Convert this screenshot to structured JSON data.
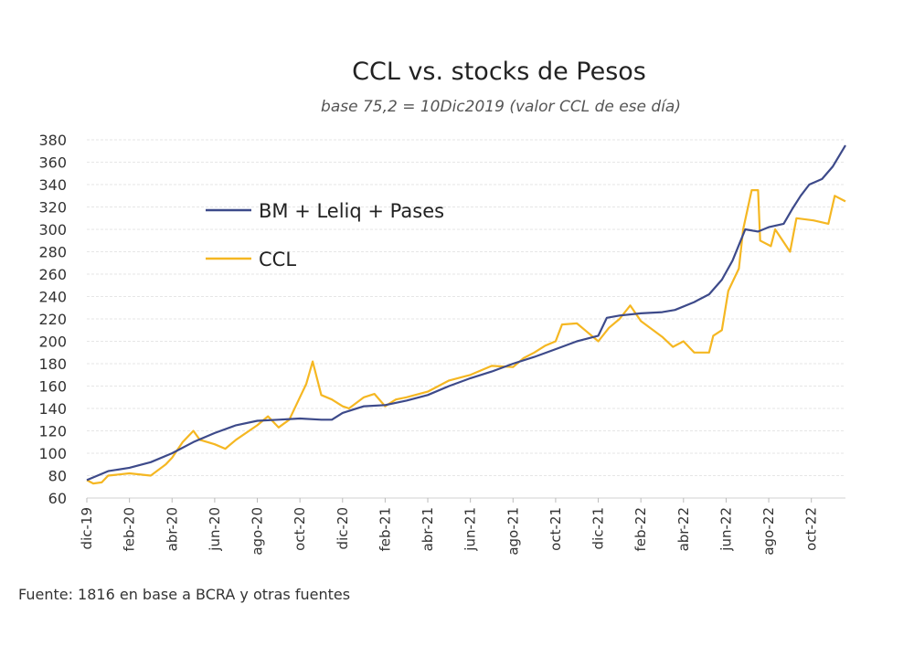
{
  "chart_data": {
    "type": "line",
    "title": "CCL vs. stocks de Pesos",
    "subtitle": "base 75,2 = 10Dic2019 (valor CCL de ese día)",
    "xlabel": "",
    "ylabel": "",
    "x_unit": "months since dic-19",
    "xlim": [
      0,
      35.6
    ],
    "ylim": [
      60,
      380
    ],
    "yticks": [
      60,
      80,
      100,
      120,
      140,
      160,
      180,
      200,
      220,
      240,
      260,
      280,
      300,
      320,
      340,
      360,
      380
    ],
    "xticks": [
      {
        "x": 0,
        "label": "dic-19"
      },
      {
        "x": 2,
        "label": "feb-20"
      },
      {
        "x": 4,
        "label": "abr-20"
      },
      {
        "x": 6,
        "label": "jun-20"
      },
      {
        "x": 8,
        "label": "ago-20"
      },
      {
        "x": 10,
        "label": "oct-20"
      },
      {
        "x": 12,
        "label": "dic-20"
      },
      {
        "x": 14,
        "label": "feb-21"
      },
      {
        "x": 16,
        "label": "abr-21"
      },
      {
        "x": 18,
        "label": "jun-21"
      },
      {
        "x": 20,
        "label": "ago-21"
      },
      {
        "x": 22,
        "label": "oct-21"
      },
      {
        "x": 24,
        "label": "dic-21"
      },
      {
        "x": 26,
        "label": "feb-22"
      },
      {
        "x": 28,
        "label": "abr-22"
      },
      {
        "x": 30,
        "label": "jun-22"
      },
      {
        "x": 32,
        "label": "ago-22"
      },
      {
        "x": 34,
        "label": "oct-22"
      }
    ],
    "grid": true,
    "legend_position": "top-left",
    "series": [
      {
        "name": "BM + Leliq + Pases",
        "color": "#3d4a8a",
        "points": [
          [
            0,
            76
          ],
          [
            0.5,
            80
          ],
          [
            1,
            84
          ],
          [
            2,
            87
          ],
          [
            3,
            92
          ],
          [
            4,
            100
          ],
          [
            5,
            110
          ],
          [
            6,
            118
          ],
          [
            7,
            125
          ],
          [
            8,
            129
          ],
          [
            9,
            130
          ],
          [
            10,
            131
          ],
          [
            11,
            130
          ],
          [
            11.5,
            130
          ],
          [
            12,
            136
          ],
          [
            13,
            142
          ],
          [
            14,
            143
          ],
          [
            15,
            147
          ],
          [
            16,
            152
          ],
          [
            17,
            160
          ],
          [
            18,
            167
          ],
          [
            19,
            173
          ],
          [
            20,
            180
          ],
          [
            21,
            186
          ],
          [
            22,
            193
          ],
          [
            23,
            200
          ],
          [
            24,
            205
          ],
          [
            24.4,
            221
          ],
          [
            25,
            223
          ],
          [
            26,
            225
          ],
          [
            27,
            226
          ],
          [
            27.6,
            228
          ],
          [
            28.5,
            235
          ],
          [
            29.2,
            242
          ],
          [
            29.8,
            255
          ],
          [
            30.3,
            272
          ],
          [
            30.9,
            300
          ],
          [
            31.5,
            298
          ],
          [
            32,
            302
          ],
          [
            32.7,
            305
          ],
          [
            33.1,
            318
          ],
          [
            33.5,
            330
          ],
          [
            33.9,
            340
          ],
          [
            34.5,
            345
          ],
          [
            35,
            356
          ],
          [
            35.6,
            375
          ]
        ]
      },
      {
        "name": "CCL",
        "color": "#f5b722",
        "points": [
          [
            0,
            76
          ],
          [
            0.3,
            73
          ],
          [
            0.7,
            74
          ],
          [
            1,
            80
          ],
          [
            2,
            82
          ],
          [
            3,
            80
          ],
          [
            3.7,
            90
          ],
          [
            4,
            96
          ],
          [
            4.5,
            110
          ],
          [
            5,
            120
          ],
          [
            5.3,
            112
          ],
          [
            6,
            108
          ],
          [
            6.5,
            104
          ],
          [
            7,
            112
          ],
          [
            8,
            125
          ],
          [
            8.5,
            133
          ],
          [
            9,
            123
          ],
          [
            9.5,
            130
          ],
          [
            10,
            150
          ],
          [
            10.3,
            162
          ],
          [
            10.6,
            182
          ],
          [
            11,
            152
          ],
          [
            11.5,
            148
          ],
          [
            12,
            142
          ],
          [
            12.3,
            140
          ],
          [
            13,
            150
          ],
          [
            13.5,
            153
          ],
          [
            14,
            142
          ],
          [
            14.5,
            148
          ],
          [
            15,
            150
          ],
          [
            16,
            155
          ],
          [
            17,
            165
          ],
          [
            18,
            170
          ],
          [
            19,
            178
          ],
          [
            20,
            177
          ],
          [
            20.5,
            185
          ],
          [
            21,
            190
          ],
          [
            21.5,
            196
          ],
          [
            22,
            200
          ],
          [
            22.3,
            215
          ],
          [
            23,
            216
          ],
          [
            23.5,
            208
          ],
          [
            24,
            200
          ],
          [
            24.5,
            212
          ],
          [
            25,
            220
          ],
          [
            25.5,
            232
          ],
          [
            26,
            218
          ],
          [
            27,
            204
          ],
          [
            27.5,
            195
          ],
          [
            28,
            200
          ],
          [
            28.5,
            190
          ],
          [
            29.2,
            190
          ],
          [
            29.4,
            205
          ],
          [
            29.8,
            210
          ],
          [
            30.1,
            245
          ],
          [
            30.6,
            265
          ],
          [
            30.8,
            300
          ],
          [
            31.2,
            335
          ],
          [
            31.5,
            335
          ],
          [
            31.6,
            290
          ],
          [
            32.1,
            285
          ],
          [
            32.3,
            300
          ],
          [
            33,
            280
          ],
          [
            33.3,
            310
          ],
          [
            34.1,
            308
          ],
          [
            34.8,
            305
          ],
          [
            35.1,
            330
          ],
          [
            35.6,
            325
          ]
        ]
      }
    ]
  },
  "source": "Fuente: 1816 en base a BCRA y otras fuentes"
}
